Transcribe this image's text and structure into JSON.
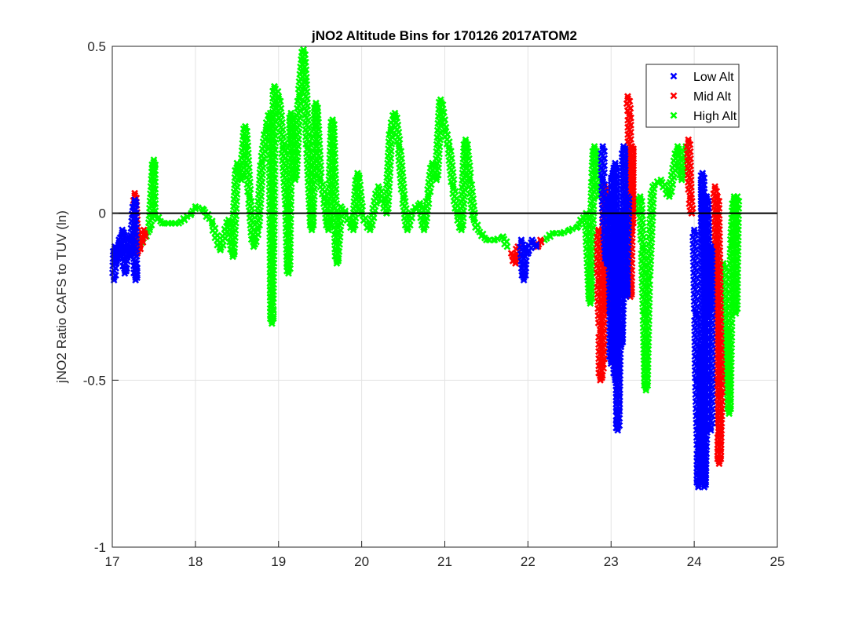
{
  "chart_data": {
    "type": "scatter",
    "title": "jNO2 Altitude Bins for 170126 2017ATOM2",
    "xlabel": "",
    "ylabel": "jNO2 Ratio CAFS to TUV (ln)",
    "xlim": [
      17,
      25
    ],
    "ylim": [
      -1,
      0.5
    ],
    "xticks": [
      "17",
      "18",
      "19",
      "20",
      "21",
      "22",
      "23",
      "24",
      "25"
    ],
    "yticks": [
      "-1",
      "-0.5",
      "0",
      "0.5"
    ],
    "xtick_values": [
      17,
      18,
      19,
      20,
      21,
      22,
      23,
      24,
      25
    ],
    "ytick_values": [
      -1,
      -0.5,
      0,
      0.5
    ],
    "grid": true,
    "reference_line": 0,
    "legend_position": "top-right",
    "series": [
      {
        "name": "Low Alt",
        "color": "#0000ff",
        "points": [
          [
            17.02,
            -0.2
          ],
          [
            17.03,
            -0.1
          ],
          [
            17.05,
            -0.15
          ],
          [
            17.08,
            -0.08
          ],
          [
            17.1,
            -0.12
          ],
          [
            17.12,
            -0.05
          ],
          [
            17.15,
            -0.18
          ],
          [
            17.18,
            -0.1
          ],
          [
            17.2,
            -0.07
          ],
          [
            17.22,
            -0.13
          ],
          [
            17.27,
            0.04
          ],
          [
            17.27,
            -0.03
          ],
          [
            17.28,
            -0.2
          ],
          [
            17.28,
            -0.15
          ],
          [
            21.92,
            -0.08
          ],
          [
            21.95,
            -0.2
          ],
          [
            21.97,
            -0.1
          ],
          [
            22.0,
            -0.12
          ],
          [
            22.05,
            -0.08
          ],
          [
            22.1,
            -0.1
          ],
          [
            22.9,
            0.2
          ],
          [
            22.9,
            0.1
          ],
          [
            22.92,
            -0.05
          ],
          [
            22.95,
            -0.15
          ],
          [
            22.98,
            0.05
          ],
          [
            23.0,
            -0.3
          ],
          [
            23.0,
            -0.45
          ],
          [
            23.02,
            0.12
          ],
          [
            23.03,
            -0.2
          ],
          [
            23.05,
            -0.5
          ],
          [
            23.05,
            0.15
          ],
          [
            23.08,
            -0.6
          ],
          [
            23.08,
            -0.65
          ],
          [
            23.1,
            -0.35
          ],
          [
            23.1,
            0.0
          ],
          [
            23.12,
            -0.4
          ],
          [
            23.15,
            -0.1
          ],
          [
            23.15,
            0.2
          ],
          [
            23.18,
            -0.25
          ],
          [
            23.2,
            0.05
          ],
          [
            24.0,
            -0.05
          ],
          [
            24.02,
            -0.3
          ],
          [
            24.03,
            -0.5
          ],
          [
            24.05,
            -0.7
          ],
          [
            24.05,
            -0.82
          ],
          [
            24.08,
            -0.6
          ],
          [
            24.08,
            -0.4
          ],
          [
            24.1,
            -0.8
          ],
          [
            24.1,
            0.12
          ],
          [
            24.12,
            -0.2
          ],
          [
            24.12,
            -0.82
          ],
          [
            24.15,
            -0.5
          ],
          [
            24.15,
            0.05
          ],
          [
            24.18,
            -0.3
          ],
          [
            24.2,
            -0.1
          ],
          [
            24.2,
            -0.65
          ]
        ]
      },
      {
        "name": "Mid Alt",
        "color": "#ff0000",
        "points": [
          [
            17.27,
            0.06
          ],
          [
            17.3,
            -0.12
          ],
          [
            17.33,
            -0.1
          ],
          [
            17.36,
            -0.08
          ],
          [
            17.38,
            -0.05
          ],
          [
            17.4,
            -0.07
          ],
          [
            21.8,
            -0.12
          ],
          [
            21.85,
            -0.15
          ],
          [
            21.88,
            -0.1
          ],
          [
            22.12,
            -0.1
          ],
          [
            22.15,
            -0.08
          ],
          [
            22.85,
            -0.05
          ],
          [
            22.85,
            -0.2
          ],
          [
            22.87,
            -0.35
          ],
          [
            22.87,
            -0.5
          ],
          [
            22.9,
            -0.45
          ],
          [
            22.92,
            0.08
          ],
          [
            22.95,
            -0.3
          ],
          [
            23.2,
            0.35
          ],
          [
            23.22,
            0.3
          ],
          [
            23.22,
            0.1
          ],
          [
            23.2,
            -0.1
          ],
          [
            23.23,
            -0.25
          ],
          [
            23.25,
            0.2
          ],
          [
            23.25,
            -0.05
          ],
          [
            23.93,
            0.22
          ],
          [
            23.95,
            0.05
          ],
          [
            23.97,
            0.0
          ],
          [
            24.25,
            0.08
          ],
          [
            24.27,
            -0.3
          ],
          [
            24.28,
            -0.5
          ],
          [
            24.3,
            -0.65
          ],
          [
            24.3,
            -0.75
          ],
          [
            24.32,
            -0.55
          ],
          [
            24.28,
            0.05
          ]
        ]
      },
      {
        "name": "High Alt",
        "color": "#00ff00",
        "points": [
          [
            17.3,
            -0.1
          ],
          [
            17.45,
            -0.05
          ],
          [
            17.5,
            0.16
          ],
          [
            17.5,
            0.13
          ],
          [
            17.5,
            0.0
          ],
          [
            17.6,
            -0.03
          ],
          [
            17.8,
            -0.03
          ],
          [
            17.95,
            0.0
          ],
          [
            18.0,
            0.02
          ],
          [
            18.1,
            0.01
          ],
          [
            18.2,
            -0.03
          ],
          [
            18.3,
            -0.11
          ],
          [
            18.4,
            -0.02
          ],
          [
            18.45,
            -0.13
          ],
          [
            18.5,
            0.15
          ],
          [
            18.55,
            0.1
          ],
          [
            18.6,
            0.26
          ],
          [
            18.65,
            0.05
          ],
          [
            18.7,
            -0.1
          ],
          [
            18.75,
            -0.05
          ],
          [
            18.8,
            0.15
          ],
          [
            18.85,
            0.25
          ],
          [
            18.9,
            0.3
          ],
          [
            18.92,
            -0.33
          ],
          [
            18.92,
            -0.27
          ],
          [
            18.93,
            -0.1
          ],
          [
            18.95,
            0.38
          ],
          [
            19.0,
            0.35
          ],
          [
            19.05,
            0.2
          ],
          [
            19.1,
            0.02
          ],
          [
            19.12,
            -0.18
          ],
          [
            19.15,
            0.3
          ],
          [
            19.2,
            0.1
          ],
          [
            19.25,
            0.35
          ],
          [
            19.3,
            0.49
          ],
          [
            19.32,
            0.4
          ],
          [
            19.35,
            0.2
          ],
          [
            19.4,
            -0.05
          ],
          [
            19.45,
            0.33
          ],
          [
            19.5,
            0.1
          ],
          [
            19.55,
            0.05
          ],
          [
            19.6,
            -0.05
          ],
          [
            19.65,
            0.28
          ],
          [
            19.7,
            -0.15
          ],
          [
            19.75,
            0.02
          ],
          [
            19.8,
            0.0
          ],
          [
            19.9,
            -0.05
          ],
          [
            19.95,
            0.12
          ],
          [
            20.0,
            0.0
          ],
          [
            20.1,
            -0.05
          ],
          [
            20.2,
            0.08
          ],
          [
            20.3,
            0.0
          ],
          [
            20.35,
            0.25
          ],
          [
            20.4,
            0.3
          ],
          [
            20.45,
            0.2
          ],
          [
            20.5,
            0.05
          ],
          [
            20.55,
            -0.05
          ],
          [
            20.6,
            0.0
          ],
          [
            20.7,
            0.03
          ],
          [
            20.75,
            -0.05
          ],
          [
            20.8,
            0.05
          ],
          [
            20.85,
            0.15
          ],
          [
            20.9,
            0.1
          ],
          [
            20.95,
            0.34
          ],
          [
            21.0,
            0.25
          ],
          [
            21.05,
            0.2
          ],
          [
            21.1,
            0.08
          ],
          [
            21.15,
            0.0
          ],
          [
            21.2,
            -0.05
          ],
          [
            21.25,
            0.22
          ],
          [
            21.3,
            0.1
          ],
          [
            21.35,
            -0.02
          ],
          [
            21.4,
            -0.05
          ],
          [
            21.5,
            -0.08
          ],
          [
            21.6,
            -0.08
          ],
          [
            21.7,
            -0.07
          ],
          [
            21.75,
            -0.1
          ],
          [
            22.2,
            -0.08
          ],
          [
            22.3,
            -0.06
          ],
          [
            22.4,
            -0.06
          ],
          [
            22.5,
            -0.05
          ],
          [
            22.6,
            -0.04
          ],
          [
            22.7,
            0.0
          ],
          [
            22.75,
            -0.27
          ],
          [
            22.78,
            0.1
          ],
          [
            22.8,
            0.2
          ],
          [
            22.85,
            0.05
          ],
          [
            23.3,
            0.0
          ],
          [
            23.35,
            0.05
          ],
          [
            23.38,
            -0.1
          ],
          [
            23.4,
            -0.3
          ],
          [
            23.42,
            -0.53
          ],
          [
            23.45,
            -0.2
          ],
          [
            23.5,
            0.08
          ],
          [
            23.6,
            0.1
          ],
          [
            23.7,
            0.05
          ],
          [
            23.8,
            0.2
          ],
          [
            23.85,
            0.1
          ],
          [
            23.9,
            0.2
          ],
          [
            24.35,
            -0.15
          ],
          [
            24.38,
            -0.5
          ],
          [
            24.4,
            -0.35
          ],
          [
            24.42,
            -0.6
          ],
          [
            24.45,
            -0.1
          ],
          [
            24.48,
            0.05
          ],
          [
            24.5,
            -0.3
          ],
          [
            24.52,
            0.05
          ]
        ]
      }
    ]
  }
}
